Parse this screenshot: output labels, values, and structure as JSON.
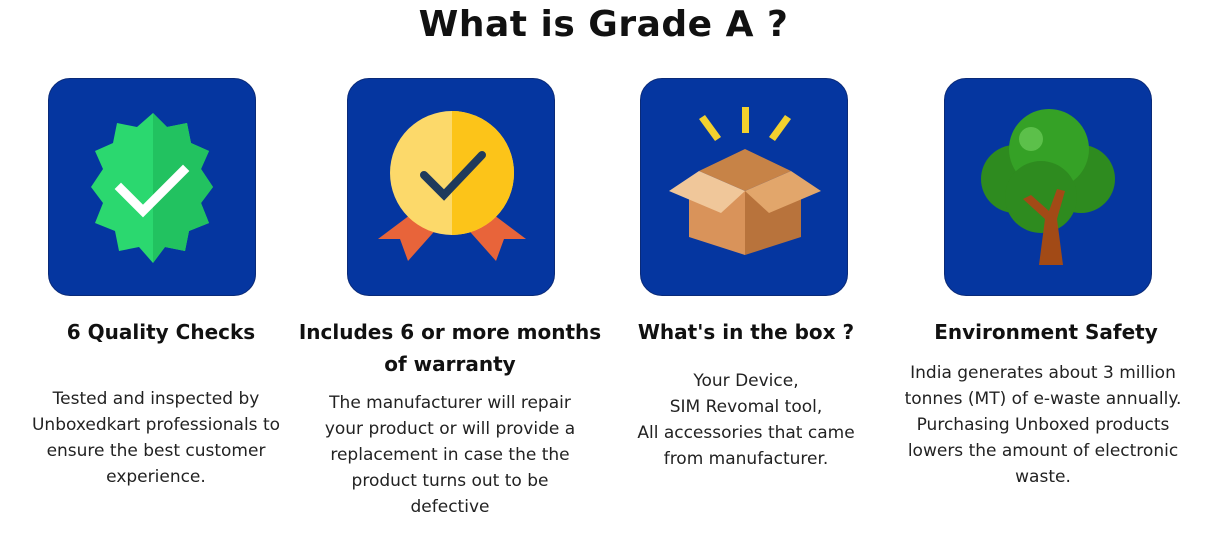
{
  "page": {
    "title": "What is Grade A ?"
  },
  "cards": [
    {
      "icon": "verified-badge-icon",
      "heading": "6 Quality Checks",
      "lines": [
        "Tested and inspected by",
        "Unboxedkart professionals to",
        "ensure the best customer",
        "experience."
      ]
    },
    {
      "icon": "warranty-medal-icon",
      "heading_lines": [
        "Includes 6 or more months",
        "of warranty"
      ],
      "lines": [
        "The manufacturer will repair",
        "your product or will provide a",
        "replacement in case the the",
        "product turns out to be",
        "defective"
      ]
    },
    {
      "icon": "open-box-icon",
      "heading": "What's in the box ?",
      "lines": [
        "Your Device,",
        "SIM Revomal tool,",
        "All accessories that came",
        "from manufacturer."
      ]
    },
    {
      "icon": "tree-icon",
      "heading": "Environment Safety",
      "lines": [
        "India generates about 3 million",
        "tonnes (MT) of e-waste annually.",
        "Purchasing Unboxed products",
        "lowers the amount of electronic",
        "waste."
      ]
    }
  ],
  "colors": {
    "tile_background": "#0536a0",
    "badge_green": "#21d46a",
    "medal_yellow": "#fcc419",
    "ribbon_orange": "#e8643a",
    "box_tan": "#d9935a",
    "tree_green": "#2e8b1f",
    "trunk_brown": "#a24a16"
  }
}
